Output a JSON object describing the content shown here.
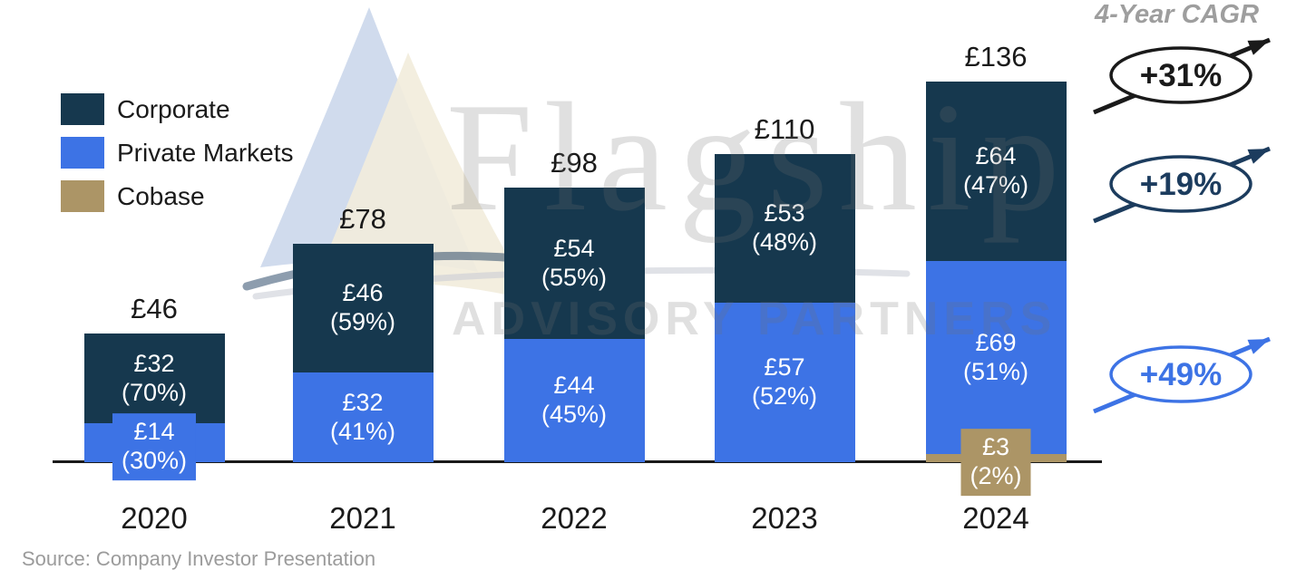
{
  "chart_data": {
    "type": "bar",
    "stacked": true,
    "currency_prefix": "£",
    "categories": [
      "2020",
      "2021",
      "2022",
      "2023",
      "2024"
    ],
    "series": [
      {
        "name": "Corporate",
        "color": "#16384E",
        "values": [
          32,
          46,
          54,
          53,
          64
        ],
        "percent_labels": [
          "(70%)",
          "(59%)",
          "(55%)",
          "(48%)",
          "(47%)"
        ]
      },
      {
        "name": "Private Markets",
        "color": "#3D73E5",
        "values": [
          14,
          32,
          44,
          57,
          69
        ],
        "percent_labels": [
          "(30%)",
          "(41%)",
          "(45%)",
          "(52%)",
          "(51%)"
        ]
      },
      {
        "name": "Cobase",
        "color": "#AC9566",
        "values": [
          null,
          null,
          null,
          null,
          3
        ],
        "percent_labels": [
          null,
          null,
          null,
          null,
          "(2%)"
        ]
      }
    ],
    "totals": [
      46,
      78,
      98,
      110,
      136
    ],
    "total_labels": [
      "£46",
      "£78",
      "£98",
      "£110",
      "£136"
    ],
    "ylim": [
      0,
      145
    ],
    "grid": false,
    "y_axis_shown": false,
    "legend_position": "top-left"
  },
  "legend": {
    "items": [
      "Corporate",
      "Private Markets",
      "Cobase"
    ]
  },
  "cagr": {
    "title": "4-Year CAGR",
    "items": [
      {
        "label": "+31%",
        "color": "#1A1A1A"
      },
      {
        "label": "+19%",
        "color": "#1C3C5E"
      },
      {
        "label": "+49%",
        "color": "#3D73E5"
      }
    ]
  },
  "watermark": {
    "brand": "Flagship",
    "tagline": "ADVISORY PARTNERS"
  },
  "source": {
    "text": "Source: Company Investor Presentation"
  },
  "colors": {
    "axis": "#1A1A1A",
    "bar_label_text": "#FFFFFF",
    "background": "#FFFFFF"
  }
}
